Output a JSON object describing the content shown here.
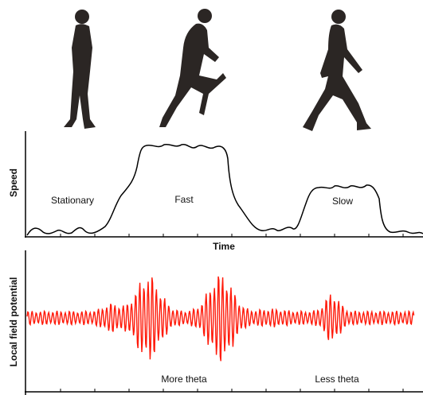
{
  "speed_panel": {
    "axis_label": "Speed",
    "states": [
      "Stationary",
      "Fast",
      "Slow"
    ],
    "x_axis_label": "Time"
  },
  "lfp_panel": {
    "axis_label": "Local field potential",
    "annotations": [
      "More theta",
      "Less theta"
    ]
  }
}
